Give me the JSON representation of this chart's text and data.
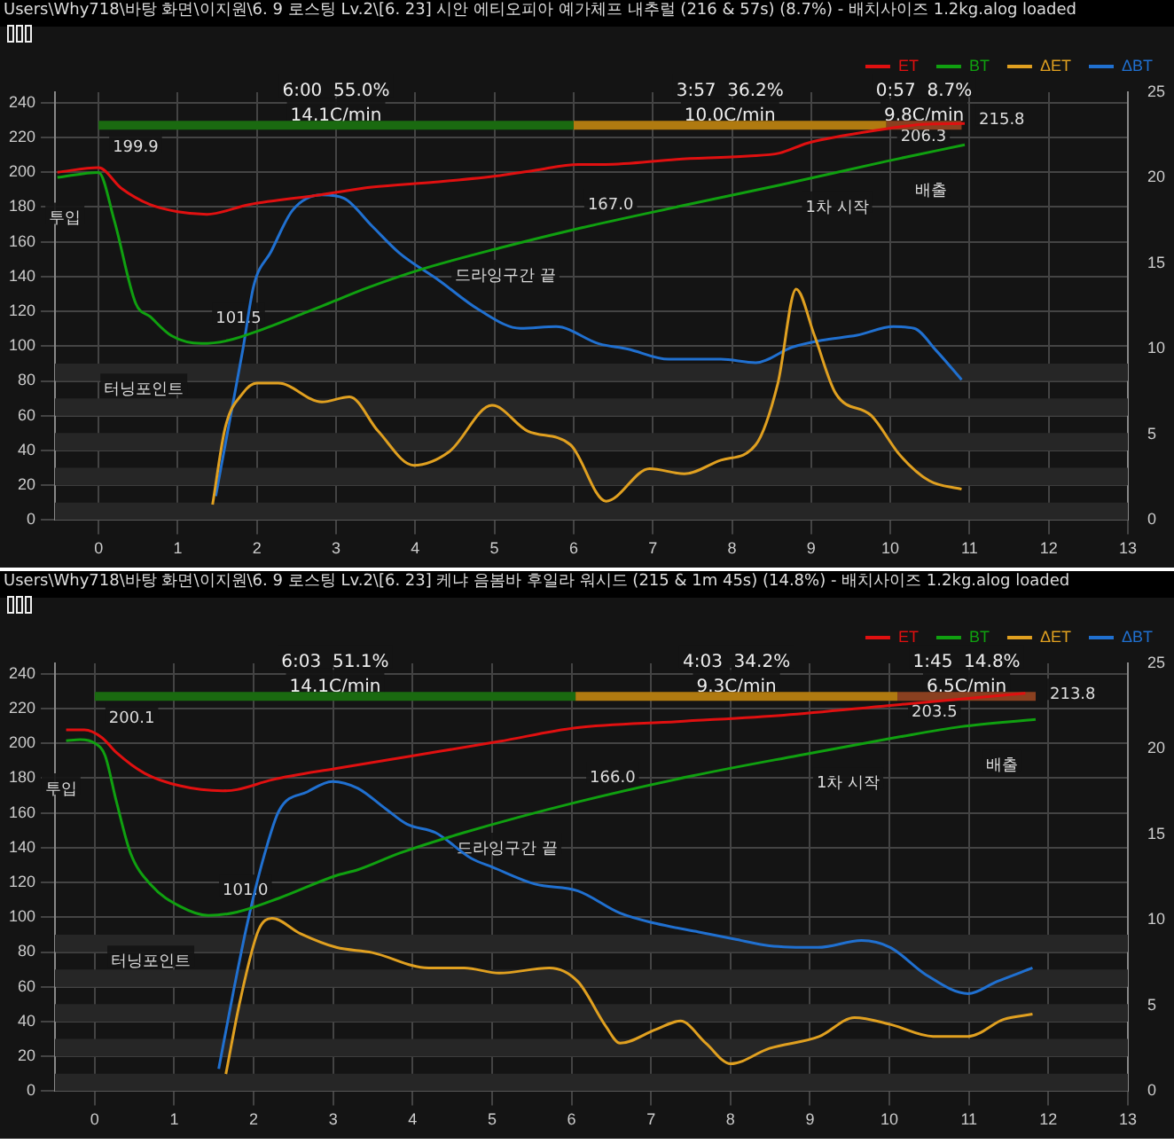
{
  "chart_data": [
    {
      "type": "line",
      "title": "Users\\Why718\\바탕 화면\\이지원\\6. 9 로스팅 Lv.2\\[6. 23] 시안 에티오피아 예가체프 내추럴 (216 & 57s) (8.7%) - 배치사이즈 1.2kg.alog  loaded",
      "xlim": [
        -0.55,
        13
      ],
      "xticks": [
        0,
        1,
        2,
        3,
        4,
        5,
        6,
        7,
        8,
        9,
        10,
        11,
        12,
        13
      ],
      "ylim": [
        0,
        246
      ],
      "yticks": [
        0,
        20,
        40,
        60,
        80,
        100,
        120,
        140,
        160,
        180,
        200,
        220,
        240
      ],
      "y2lim": [
        0,
        25
      ],
      "y2ticks": [
        0,
        5,
        10,
        15,
        20,
        25
      ],
      "grid": true,
      "legend": "top right",
      "marker": "none",
      "line_style": "solid",
      "series": [
        {
          "name": "ET",
          "color": "#e01010",
          "x": [
            -0.52,
            0,
            0.29,
            0.65,
            1.0,
            1.37,
            1.9,
            2.8,
            3.45,
            4.26,
            5.07,
            5.5,
            6.06,
            6.4,
            7.3,
            8.2,
            8.6,
            8.95,
            9.4,
            9.95,
            10.4,
            10.94
          ],
          "values": [
            200,
            202.6,
            190.7,
            181.4,
            177.3,
            175.8,
            181.4,
            187,
            191.4,
            194.4,
            198.1,
            201,
            204.5,
            204.5,
            207.4,
            209.3,
            211,
            216.7,
            221,
            225,
            227.5,
            228
          ]
        },
        {
          "name": "BT",
          "color": "#10a010",
          "x": [
            -0.52,
            0,
            0.2,
            0.47,
            0.65,
            0.92,
            1.3,
            1.64,
            2.0,
            2.63,
            2.9,
            3.4,
            4.08,
            5.07,
            6.0,
            7.33,
            8.6,
            9.95,
            10.94
          ],
          "values": [
            197,
            199.9,
            172,
            124.5,
            117,
            106,
            101.5,
            103.3,
            108.5,
            119.6,
            124.5,
            133.6,
            144.2,
            156.5,
            167.0,
            180.3,
            192.6,
            206.3,
            215.8
          ]
        },
        {
          "name": "ΔET",
          "color": "#e0a020",
          "axis": "y2",
          "x": [
            1.44,
            1.6,
            1.82,
            2.0,
            2.27,
            2.82,
            3.17,
            3.53,
            3.98,
            4.43,
            4.97,
            5.42,
            5.96,
            6.41,
            6.96,
            7.4,
            7.86,
            8.3,
            8.58,
            8.81,
            9.04,
            9.31,
            9.76,
            10.12,
            10.49,
            10.9
          ],
          "values": [
            0.9,
            5.4,
            7.4,
            8.0,
            8.0,
            6.9,
            7.2,
            5.2,
            3.2,
            4.0,
            6.7,
            5.2,
            4.4,
            1.1,
            3.0,
            2.7,
            3.5,
            4.4,
            8.0,
            13.5,
            10.8,
            7.4,
            6.1,
            3.8,
            2.3,
            1.8
          ]
        },
        {
          "color": "#1a6a10",
          "x": [
            0,
            6.0
          ],
          "values": [
            227,
            227
          ]
        },
        {
          "color": "#b07a10",
          "x": [
            6.0,
            9.95
          ],
          "values": [
            227,
            227
          ]
        },
        {
          "color": "#8a4020",
          "x": [
            9.95,
            10.9
          ],
          "values": [
            227,
            227
          ]
        },
        {
          "name": "ΔBT",
          "color": "#2070d0",
          "axis": "y2",
          "x": [
            1.48,
            1.64,
            1.82,
            1.96,
            2.18,
            2.45,
            2.82,
            3.1,
            3.45,
            3.8,
            4.3,
            4.8,
            5.33,
            5.78,
            6.32,
            6.68,
            7.2,
            7.86,
            8.3,
            8.76,
            9.13,
            9.58,
            10.04,
            10.3,
            10.58,
            10.9
          ],
          "values": [
            1.4,
            5.4,
            9.9,
            13.7,
            15.7,
            18.1,
            19.0,
            18.8,
            17.2,
            15.6,
            14.0,
            12.3,
            11.2,
            11.3,
            10.3,
            10.0,
            9.4,
            9.4,
            9.2,
            10.1,
            10.5,
            10.8,
            11.3,
            11.2,
            9.9,
            8.2
          ]
        }
      ],
      "bands": [
        {
          "axis": "y",
          "from": 0,
          "to": 10,
          "color": "#262626"
        },
        {
          "axis": "y",
          "from": 20,
          "to": 30,
          "color": "#262626"
        },
        {
          "axis": "y",
          "from": 40,
          "to": 50,
          "color": "#262626"
        },
        {
          "axis": "y",
          "from": 60,
          "to": 70,
          "color": "#262626"
        },
        {
          "axis": "y",
          "from": 80,
          "to": 90,
          "color": "#262626"
        }
      ],
      "annotations": [
        "6:00  55.0%",
        "3:57  36.2%",
        "0:57  8.7%",
        "14.1C/min",
        "10.0C/min",
        "9.8C/min",
        {
          "text": "199.9",
          "x": 0,
          "y": 199.9
        },
        {
          "text": "투입",
          "x": 0,
          "y": 199.9
        },
        {
          "text": "101.5",
          "x": 1.3,
          "y": 101.5
        },
        {
          "text": "터닝포인트",
          "x": 1.3,
          "y": 101.5
        },
        {
          "text": "167.0",
          "x": 6.0,
          "y": 167.0
        },
        {
          "text": "드라잉구간 끝",
          "x": 6.0,
          "y": 167.0
        },
        {
          "text": "206.3",
          "x": 9.95,
          "y": 206.3
        },
        {
          "text": "1차 시작",
          "x": 9.95,
          "y": 206.3
        },
        {
          "text": "215.8",
          "x": 10.94,
          "y": 215.8
        },
        {
          "text": "배출",
          "x": 10.94,
          "y": 215.8
        }
      ]
    },
    {
      "type": "line",
      "title": "Users\\Why718\\바탕 화면\\이지원\\6. 9 로스팅 Lv.2\\[6. 23] 케냐 음봄바 후일라 워시드 (215 & 1m 45s) (14.8%) - 배치사이즈 1.2kg.alog  loaded",
      "xlim": [
        -0.5,
        13
      ],
      "xticks": [
        0,
        1,
        2,
        3,
        4,
        5,
        6,
        7,
        8,
        9,
        10,
        11,
        12,
        13
      ],
      "ylim": [
        0,
        246
      ],
      "yticks": [
        0,
        20,
        40,
        60,
        80,
        100,
        120,
        140,
        160,
        180,
        200,
        220,
        240
      ],
      "y2lim": [
        0,
        25
      ],
      "y2ticks": [
        0,
        5,
        10,
        15,
        20,
        25
      ],
      "grid": true,
      "legend": "top right",
      "marker": "none",
      "line_style": "solid",
      "series": [
        {
          "name": "ET",
          "color": "#e01010",
          "x": [
            -0.36,
            -0.13,
            0.09,
            0.27,
            0.63,
            1.07,
            1.61,
            1.79,
            2.23,
            3.04,
            4.02,
            5.09,
            6.05,
            7.33,
            8.67,
            10.01,
            10.9,
            11.71
          ],
          "values": [
            207.7,
            207.7,
            203.3,
            194.8,
            182.7,
            175.6,
            172.7,
            173.4,
            179,
            185.6,
            193,
            201.1,
            208.9,
            212.5,
            216.2,
            221.8,
            225.5,
            228.8
          ]
        },
        {
          "name": "BT",
          "color": "#10a010",
          "x": [
            -0.36,
            -0.18,
            0,
            0.13,
            0.27,
            0.45,
            0.71,
            1.07,
            1.43,
            1.79,
            2.32,
            3.04,
            3.31,
            3.84,
            4.65,
            6.05,
            7.51,
            8.85,
            10.1,
            10.9,
            11.84
          ],
          "values": [
            201.5,
            202.2,
            200.1,
            193,
            167,
            136.9,
            118.5,
            106.3,
            101.0,
            103,
            111,
            124,
            127.3,
            136.9,
            148.7,
            166.0,
            181.2,
            193,
            203.5,
            209.6,
            213.8
          ]
        },
        {
          "name": "ΔET",
          "color": "#e0a020",
          "axis": "y2",
          "x": [
            1.65,
            1.83,
            2.06,
            2.23,
            2.59,
            3.04,
            3.49,
            4.2,
            4.65,
            5.09,
            5.72,
            6.08,
            6.43,
            6.61,
            7.06,
            7.37,
            7.69,
            8.0,
            8.49,
            9.12,
            9.56,
            10.01,
            10.55,
            10.99,
            11.44,
            11.8
          ],
          "values": [
            1.0,
            5.3,
            9.4,
            10.1,
            9.2,
            8.4,
            8.1,
            7.2,
            7.2,
            6.9,
            7.2,
            6.4,
            3.8,
            2.8,
            3.6,
            4.1,
            2.8,
            1.6,
            2.5,
            3.2,
            4.3,
            3.9,
            3.2,
            3.2,
            4.2,
            4.5
          ]
        },
        {
          "color": "#1a6a10",
          "x": [
            0,
            6.05
          ],
          "values": [
            227,
            227
          ]
        },
        {
          "color": "#b07a10",
          "x": [
            6.05,
            10.1
          ],
          "values": [
            227,
            227
          ]
        },
        {
          "color": "#8a4020",
          "x": [
            10.1,
            11.84
          ],
          "values": [
            227,
            227
          ]
        },
        {
          "name": "ΔBT",
          "color": "#2070d0",
          "axis": "y2",
          "x": [
            1.56,
            1.74,
            1.92,
            2.14,
            2.32,
            2.68,
            2.99,
            3.31,
            3.66,
            3.93,
            4.29,
            4.74,
            5.0,
            5.54,
            6.08,
            6.61,
            7.06,
            7.6,
            8.04,
            8.49,
            9.1,
            9.65,
            10.01,
            10.46,
            10.99,
            11.35,
            11.8
          ],
          "values": [
            1.3,
            5.7,
            9.8,
            13.9,
            16.4,
            17.5,
            18.1,
            17.7,
            16.5,
            15.6,
            15.1,
            13.6,
            13.1,
            12.1,
            11.7,
            10.4,
            9.8,
            9.3,
            8.9,
            8.5,
            8.4,
            8.8,
            8.4,
            6.8,
            5.7,
            6.4,
            7.2
          ]
        }
      ],
      "bands": [
        {
          "axis": "y",
          "from": 0,
          "to": 10,
          "color": "#262626"
        },
        {
          "axis": "y",
          "from": 20,
          "to": 30,
          "color": "#262626"
        },
        {
          "axis": "y",
          "from": 40,
          "to": 50,
          "color": "#262626"
        },
        {
          "axis": "y",
          "from": 60,
          "to": 70,
          "color": "#262626"
        },
        {
          "axis": "y",
          "from": 80,
          "to": 90,
          "color": "#262626"
        }
      ],
      "annotations": [
        "6:03  51.1%",
        "4:03  34.2%",
        "1:45  14.8%",
        "14.1C/min",
        "9.3C/min",
        "6.5C/min",
        {
          "text": "200.1",
          "x": 0,
          "y": 200.1
        },
        {
          "text": "투입",
          "x": 0,
          "y": 200.1
        },
        {
          "text": "101.0",
          "x": 1.43,
          "y": 101.0
        },
        {
          "text": "터닝포인트",
          "x": 1.43,
          "y": 101.0
        },
        {
          "text": "166.0",
          "x": 6.05,
          "y": 166.0
        },
        {
          "text": "드라잉구간 끝",
          "x": 6.05,
          "y": 166.0
        },
        {
          "text": "203.5",
          "x": 10.1,
          "y": 203.5
        },
        {
          "text": "1차 시작",
          "x": 10.1,
          "y": 203.5
        },
        {
          "text": "213.8",
          "x": 11.84,
          "y": 213.8
        },
        {
          "text": "배출",
          "x": 11.84,
          "y": 213.8
        }
      ]
    }
  ]
}
